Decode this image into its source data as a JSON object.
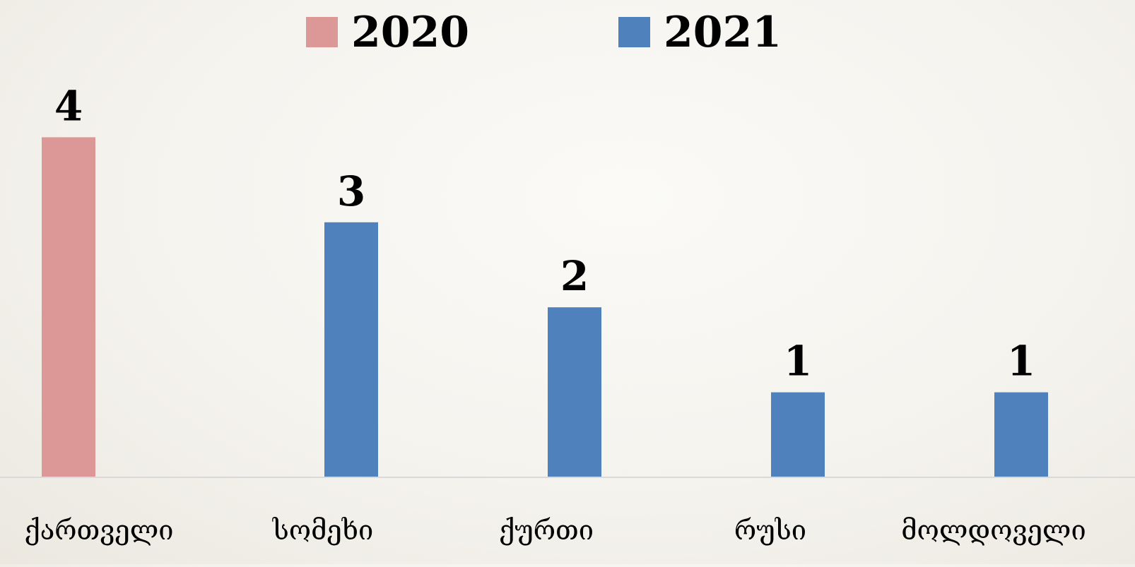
{
  "chart_data": {
    "type": "bar",
    "categories": [
      "ქართველი",
      "სომეხი",
      "ქურთი",
      "რუსი",
      "მოლდოველი"
    ],
    "series": [
      {
        "name": "2020",
        "color": "#dc9797",
        "values": [
          4,
          null,
          null,
          null,
          null
        ]
      },
      {
        "name": "2021",
        "color": "#4f81bd",
        "values": [
          null,
          3,
          2,
          1,
          1
        ]
      }
    ],
    "data_labels": [
      "4",
      "3",
      "2",
      "1",
      "1"
    ],
    "ylim": [
      0,
      4
    ],
    "grid": false,
    "legend_position": "top",
    "title": "",
    "xlabel": "",
    "ylabel": ""
  }
}
